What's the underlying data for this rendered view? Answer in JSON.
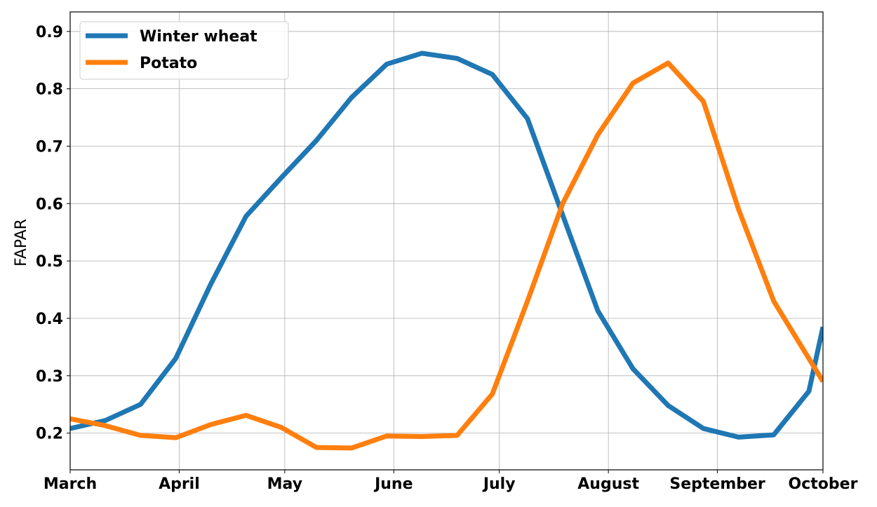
{
  "chart_data": {
    "type": "line",
    "title": "",
    "xlabel": "",
    "ylabel": "FAPAR",
    "x_axis_type": "date",
    "xlim": [
      "03-01",
      "10-01"
    ],
    "ylim": [
      0.136,
      0.934
    ],
    "xtick_labels": [
      "March",
      "April",
      "May",
      "June",
      "July",
      "August",
      "September",
      "October"
    ],
    "xtick_dates": [
      "03-01",
      "04-01",
      "05-01",
      "06-01",
      "07-01",
      "08-01",
      "09-01",
      "10-01"
    ],
    "yticks": [
      0.2,
      0.3,
      0.4,
      0.5,
      0.6,
      0.7,
      0.8,
      0.9
    ],
    "ytick_labels": [
      "0.2",
      "0.3",
      "0.4",
      "0.5",
      "0.6",
      "0.7",
      "0.8",
      "0.9"
    ],
    "grid": true,
    "legend_position": "top-left",
    "x": [
      "03-01",
      "03-11",
      "03-21",
      "03-31",
      "04-10",
      "04-20",
      "04-30",
      "05-10",
      "05-20",
      "05-30",
      "06-09",
      "06-19",
      "06-29",
      "07-09",
      "07-19",
      "07-29",
      "08-08",
      "08-18",
      "08-28",
      "09-07",
      "09-17",
      "09-27",
      "10-01"
    ],
    "series": [
      {
        "name": "Winter wheat",
        "color": "#1f77b4",
        "values": [
          0.208,
          0.222,
          0.25,
          0.33,
          0.46,
          0.578,
          0.645,
          0.71,
          0.785,
          0.843,
          0.862,
          0.853,
          0.825,
          0.748,
          0.58,
          0.413,
          0.312,
          0.248,
          0.208,
          0.193,
          0.197,
          0.273,
          0.385
        ]
      },
      {
        "name": "Potato",
        "color": "#ff7f0e",
        "values": [
          0.225,
          0.213,
          0.196,
          0.192,
          0.215,
          0.231,
          0.21,
          0.175,
          0.174,
          0.195,
          0.194,
          0.196,
          0.268,
          0.43,
          0.6,
          0.72,
          0.81,
          0.845,
          0.778,
          0.59,
          0.43,
          0.33,
          0.29
        ]
      }
    ]
  }
}
